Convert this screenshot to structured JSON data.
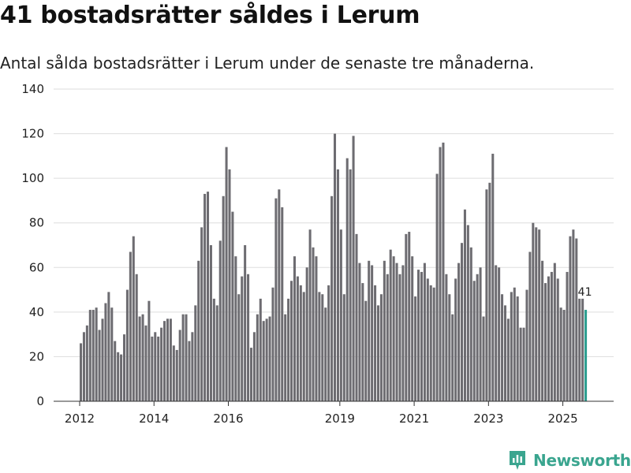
{
  "chart_data": {
    "type": "bar",
    "title": "41 bostadsrätter såldes i Lerum",
    "subtitle": "Antal sålda bostadsrätter i Lerum under de senaste tre månaderna.",
    "xlabel": "",
    "ylabel": "",
    "ylim": [
      0,
      140
    ],
    "yticks": [
      "0",
      "20",
      "40",
      "60",
      "80",
      "100",
      "120",
      "140"
    ],
    "xticks": [
      "2012",
      "2014",
      "2016",
      "2019",
      "2021",
      "2023",
      "2025"
    ],
    "grid": true,
    "colors": {
      "bar": "#6d6c71",
      "highlight": "#2a9d8f",
      "grid": "#dddddd"
    },
    "values": [
      26,
      31,
      34,
      41,
      41,
      42,
      32,
      37,
      44,
      49,
      42,
      27,
      22,
      21,
      30,
      50,
      67,
      74,
      57,
      38,
      39,
      34,
      45,
      29,
      31,
      29,
      33,
      36,
      37,
      37,
      25,
      23,
      32,
      39,
      39,
      27,
      31,
      43,
      63,
      78,
      93,
      94,
      70,
      46,
      43,
      72,
      92,
      114,
      104,
      85,
      65,
      48,
      56,
      70,
      57,
      24,
      31,
      39,
      46,
      36,
      37,
      38,
      51,
      91,
      95,
      87,
      39,
      46,
      54,
      65,
      56,
      52,
      49,
      60,
      77,
      69,
      65,
      49,
      48,
      42,
      52,
      92,
      120,
      104,
      77,
      48,
      109,
      104,
      119,
      75,
      62,
      53,
      45,
      63,
      61,
      52,
      43,
      48,
      63,
      57,
      68,
      65,
      62,
      57,
      61,
      75,
      76,
      65,
      47,
      59,
      58,
      62,
      55,
      52,
      51,
      102,
      114,
      116,
      57,
      48,
      39,
      55,
      62,
      71,
      86,
      79,
      69,
      54,
      57,
      60,
      38,
      95,
      98,
      111,
      61,
      60,
      48,
      43,
      37,
      49,
      51,
      47,
      33,
      33,
      50,
      67,
      80,
      78,
      77,
      63,
      53,
      56,
      58,
      62,
      55,
      42,
      41,
      58,
      74,
      77,
      73,
      46,
      46,
      41
    ],
    "annotation": {
      "text": "41"
    }
  },
  "brand": {
    "name": "Newsworthy"
  }
}
